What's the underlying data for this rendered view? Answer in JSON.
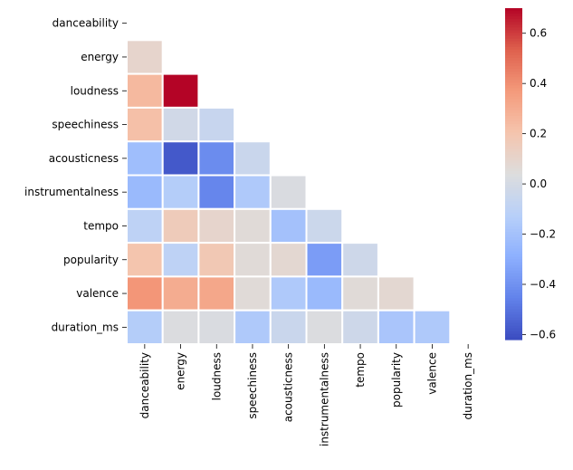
{
  "chart_data": {
    "type": "heatmap",
    "mask": "upper-triangle-and-diagonal",
    "variables": [
      "danceability",
      "energy",
      "loudness",
      "speechiness",
      "acousticness",
      "instrumentalness",
      "tempo",
      "popularity",
      "valence",
      "duration_ms"
    ],
    "matrix": [
      [
        null,
        null,
        null,
        null,
        null,
        null,
        null,
        null,
        null,
        null
      ],
      [
        0.1,
        null,
        null,
        null,
        null,
        null,
        null,
        null,
        null,
        null
      ],
      [
        0.25,
        0.7,
        null,
        null,
        null,
        null,
        null,
        null,
        null,
        null
      ],
      [
        0.22,
        -0.02,
        -0.06,
        null,
        null,
        null,
        null,
        null,
        null,
        null
      ],
      [
        -0.22,
        -0.58,
        -0.42,
        -0.05,
        null,
        null,
        null,
        null,
        null,
        null
      ],
      [
        -0.24,
        -0.14,
        -0.44,
        -0.16,
        0.02,
        null,
        null,
        null,
        null,
        null
      ],
      [
        -0.1,
        0.16,
        0.1,
        0.06,
        -0.2,
        -0.04,
        null,
        null,
        null,
        null
      ],
      [
        0.2,
        -0.1,
        0.18,
        0.06,
        0.08,
        -0.36,
        -0.03,
        null,
        null,
        null
      ],
      [
        0.38,
        0.3,
        0.32,
        0.06,
        -0.16,
        -0.24,
        0.06,
        0.08,
        null,
        null
      ],
      [
        -0.14,
        0.03,
        0.02,
        -0.16,
        -0.05,
        0.03,
        -0.03,
        -0.18,
        -0.16,
        null
      ]
    ],
    "vmin": -0.62,
    "vmax": 0.7,
    "colormap": "coolwarm",
    "colorbar_ticks": [
      "0.6",
      "0.4",
      "0.2",
      "0.0",
      "−0.2",
      "−0.4",
      "−0.6"
    ],
    "colorbar_tick_values": [
      0.6,
      0.4,
      0.2,
      0.0,
      -0.2,
      -0.4,
      -0.6
    ],
    "cell_border_color": "#ffffff",
    "grid": false
  }
}
